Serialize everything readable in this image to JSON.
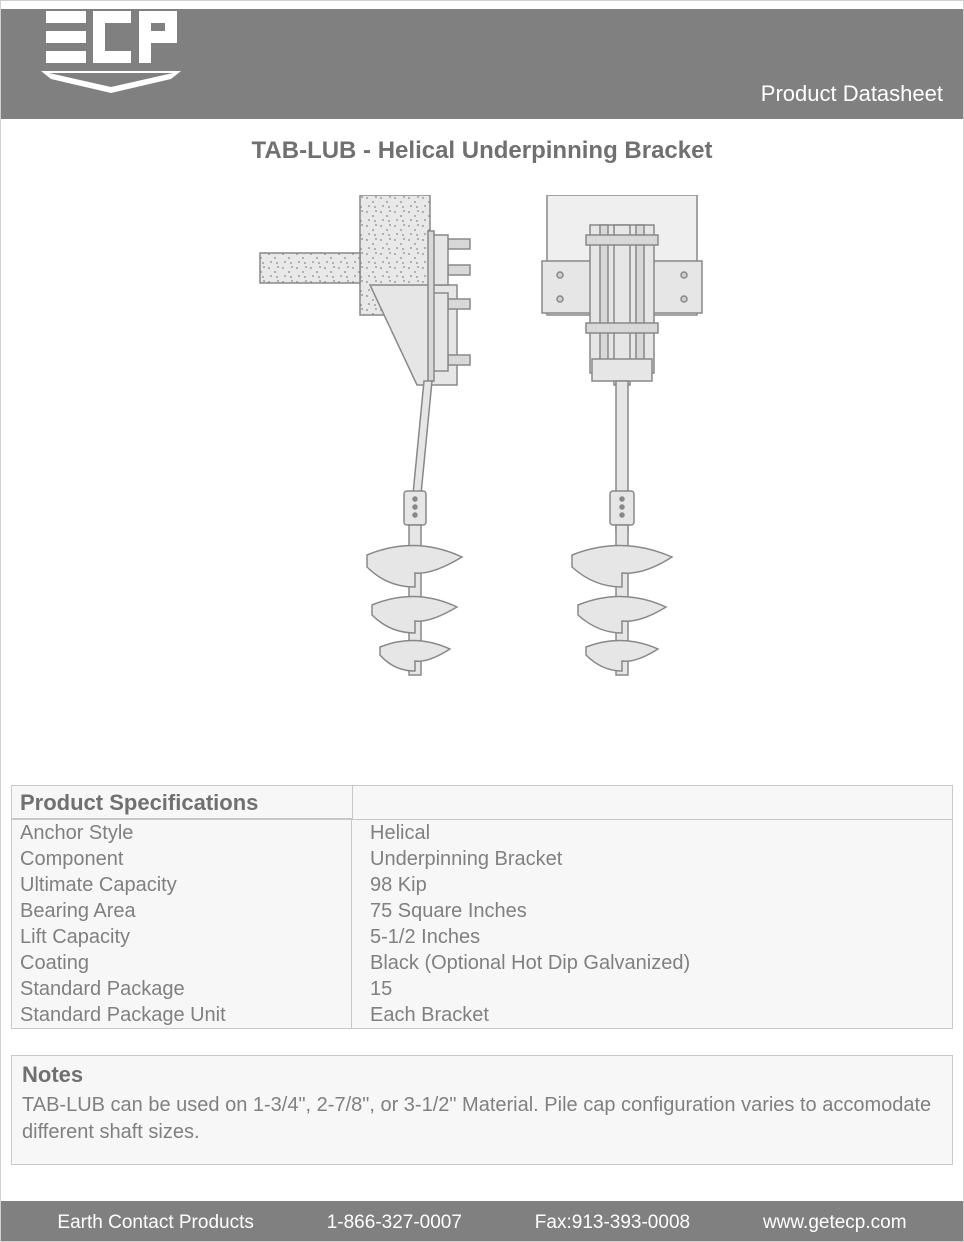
{
  "header": {
    "brand": "ECP",
    "label": "Product Datasheet"
  },
  "title": "TAB-LUB - Helical Underpinning Bracket",
  "diagram": {
    "stroke": "#888888",
    "fill_light": "#e6e6e6",
    "fill_mid": "#d8d8d8",
    "concrete_fill": "#e8e8e8"
  },
  "specs": {
    "heading": "Product Specifications",
    "rows": [
      {
        "label": "Anchor Style",
        "value": "Helical"
      },
      {
        "label": "Component",
        "value": "Underpinning Bracket"
      },
      {
        "label": "Ultimate Capacity",
        "value": "98 Kip"
      },
      {
        "label": "Bearing Area",
        "value": "75 Square Inches"
      },
      {
        "label": "Lift Capacity",
        "value": "5-1/2 Inches"
      },
      {
        "label": "Coating",
        "value": "Black (Optional Hot Dip Galvanized)"
      },
      {
        "label": "Standard Package",
        "value": "15"
      },
      {
        "label": "Standard Package Unit",
        "value": "Each Bracket"
      }
    ]
  },
  "notes": {
    "heading": "Notes",
    "body": "TAB-LUB can be used on 1-3/4\", 2-7/8\", or 3-1/2\" Material. Pile cap configuration varies to accomodate different shaft sizes."
  },
  "footer": {
    "company": "Earth Contact Products",
    "phone": "1-866-327-0007",
    "fax": "Fax:913-393-0008",
    "url": "www.getecp.com"
  }
}
